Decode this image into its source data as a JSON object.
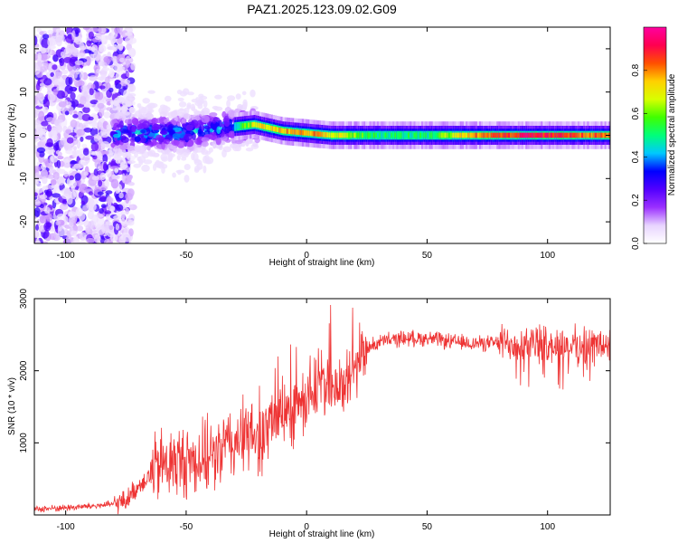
{
  "chart_data": [
    {
      "type": "heatmap",
      "title": "PAZ1.2025.123.09.02.G09",
      "xlabel": "Height of straight line (km)",
      "ylabel": "Frequency (Hz)",
      "xlim": [
        -113,
        126
      ],
      "ylim": [
        -25,
        25
      ],
      "x_ticks": [
        -100,
        -50,
        0,
        50,
        100
      ],
      "y_ticks": [
        -20,
        -10,
        0,
        10,
        20
      ],
      "colorbar": {
        "label": "Normalized spectral amplitude",
        "range": [
          0,
          1
        ],
        "ticks": [
          0.0,
          0.2,
          0.4,
          0.6,
          0.8
        ],
        "colormap": [
          "#ffffff",
          "#e8d4ff",
          "#9b30ff",
          "#5200ff",
          "#0000ff",
          "#00c8ff",
          "#00ff7a",
          "#40ff00",
          "#d8ff00",
          "#ffd000",
          "#ff5000",
          "#ff0050",
          "#ff00a0"
        ]
      },
      "ridge": [
        {
          "x": -70,
          "f": 0.5,
          "amp": 0.28
        },
        {
          "x": -50,
          "f": 0.5,
          "amp": 0.3
        },
        {
          "x": -40,
          "f": 1.5,
          "amp": 0.35
        },
        {
          "x": -30,
          "f": 2.0,
          "amp": 0.45
        },
        {
          "x": -22,
          "f": 2.5,
          "amp": 0.7
        },
        {
          "x": -10,
          "f": 1.0,
          "amp": 0.75
        },
        {
          "x": 0,
          "f": 0.5,
          "amp": 0.8
        },
        {
          "x": 10,
          "f": 0.0,
          "amp": 0.72
        },
        {
          "x": 30,
          "f": 0.0,
          "amp": 0.5
        },
        {
          "x": 50,
          "f": 0.0,
          "amp": 0.5
        },
        {
          "x": 70,
          "f": 0.0,
          "amp": 0.8
        },
        {
          "x": 90,
          "f": 0.0,
          "amp": 0.9
        },
        {
          "x": 110,
          "f": 0.0,
          "amp": 0.85
        },
        {
          "x": 125,
          "f": 0.0,
          "amp": 0.8
        }
      ]
    },
    {
      "type": "line",
      "xlabel": "Height of straight line (km)",
      "ylabel": "SNR (10 * v/v)",
      "xlim": [
        -113,
        126
      ],
      "ylim": [
        0,
        3000
      ],
      "x_ticks": [
        -100,
        -50,
        0,
        50,
        100
      ],
      "y_ticks": [
        1000,
        2000,
        3000
      ],
      "color": "#ee3333",
      "series": [
        {
          "x": [
            -113,
            -100,
            -90,
            -80,
            -75,
            -70,
            -65,
            -60,
            -50,
            -40,
            -30,
            -25,
            -20,
            -10,
            -5,
            0,
            5,
            10,
            15,
            20,
            25,
            30,
            40,
            50,
            60,
            70,
            80,
            90,
            100,
            110,
            126
          ],
          "values": [
            80,
            100,
            120,
            150,
            200,
            400,
            550,
            700,
            750,
            800,
            1000,
            1100,
            1050,
            1400,
            1500,
            1600,
            1800,
            1900,
            1700,
            2100,
            2300,
            2400,
            2450,
            2450,
            2400,
            2380,
            2380,
            2400,
            2350,
            2350,
            2350
          ]
        }
      ]
    }
  ]
}
